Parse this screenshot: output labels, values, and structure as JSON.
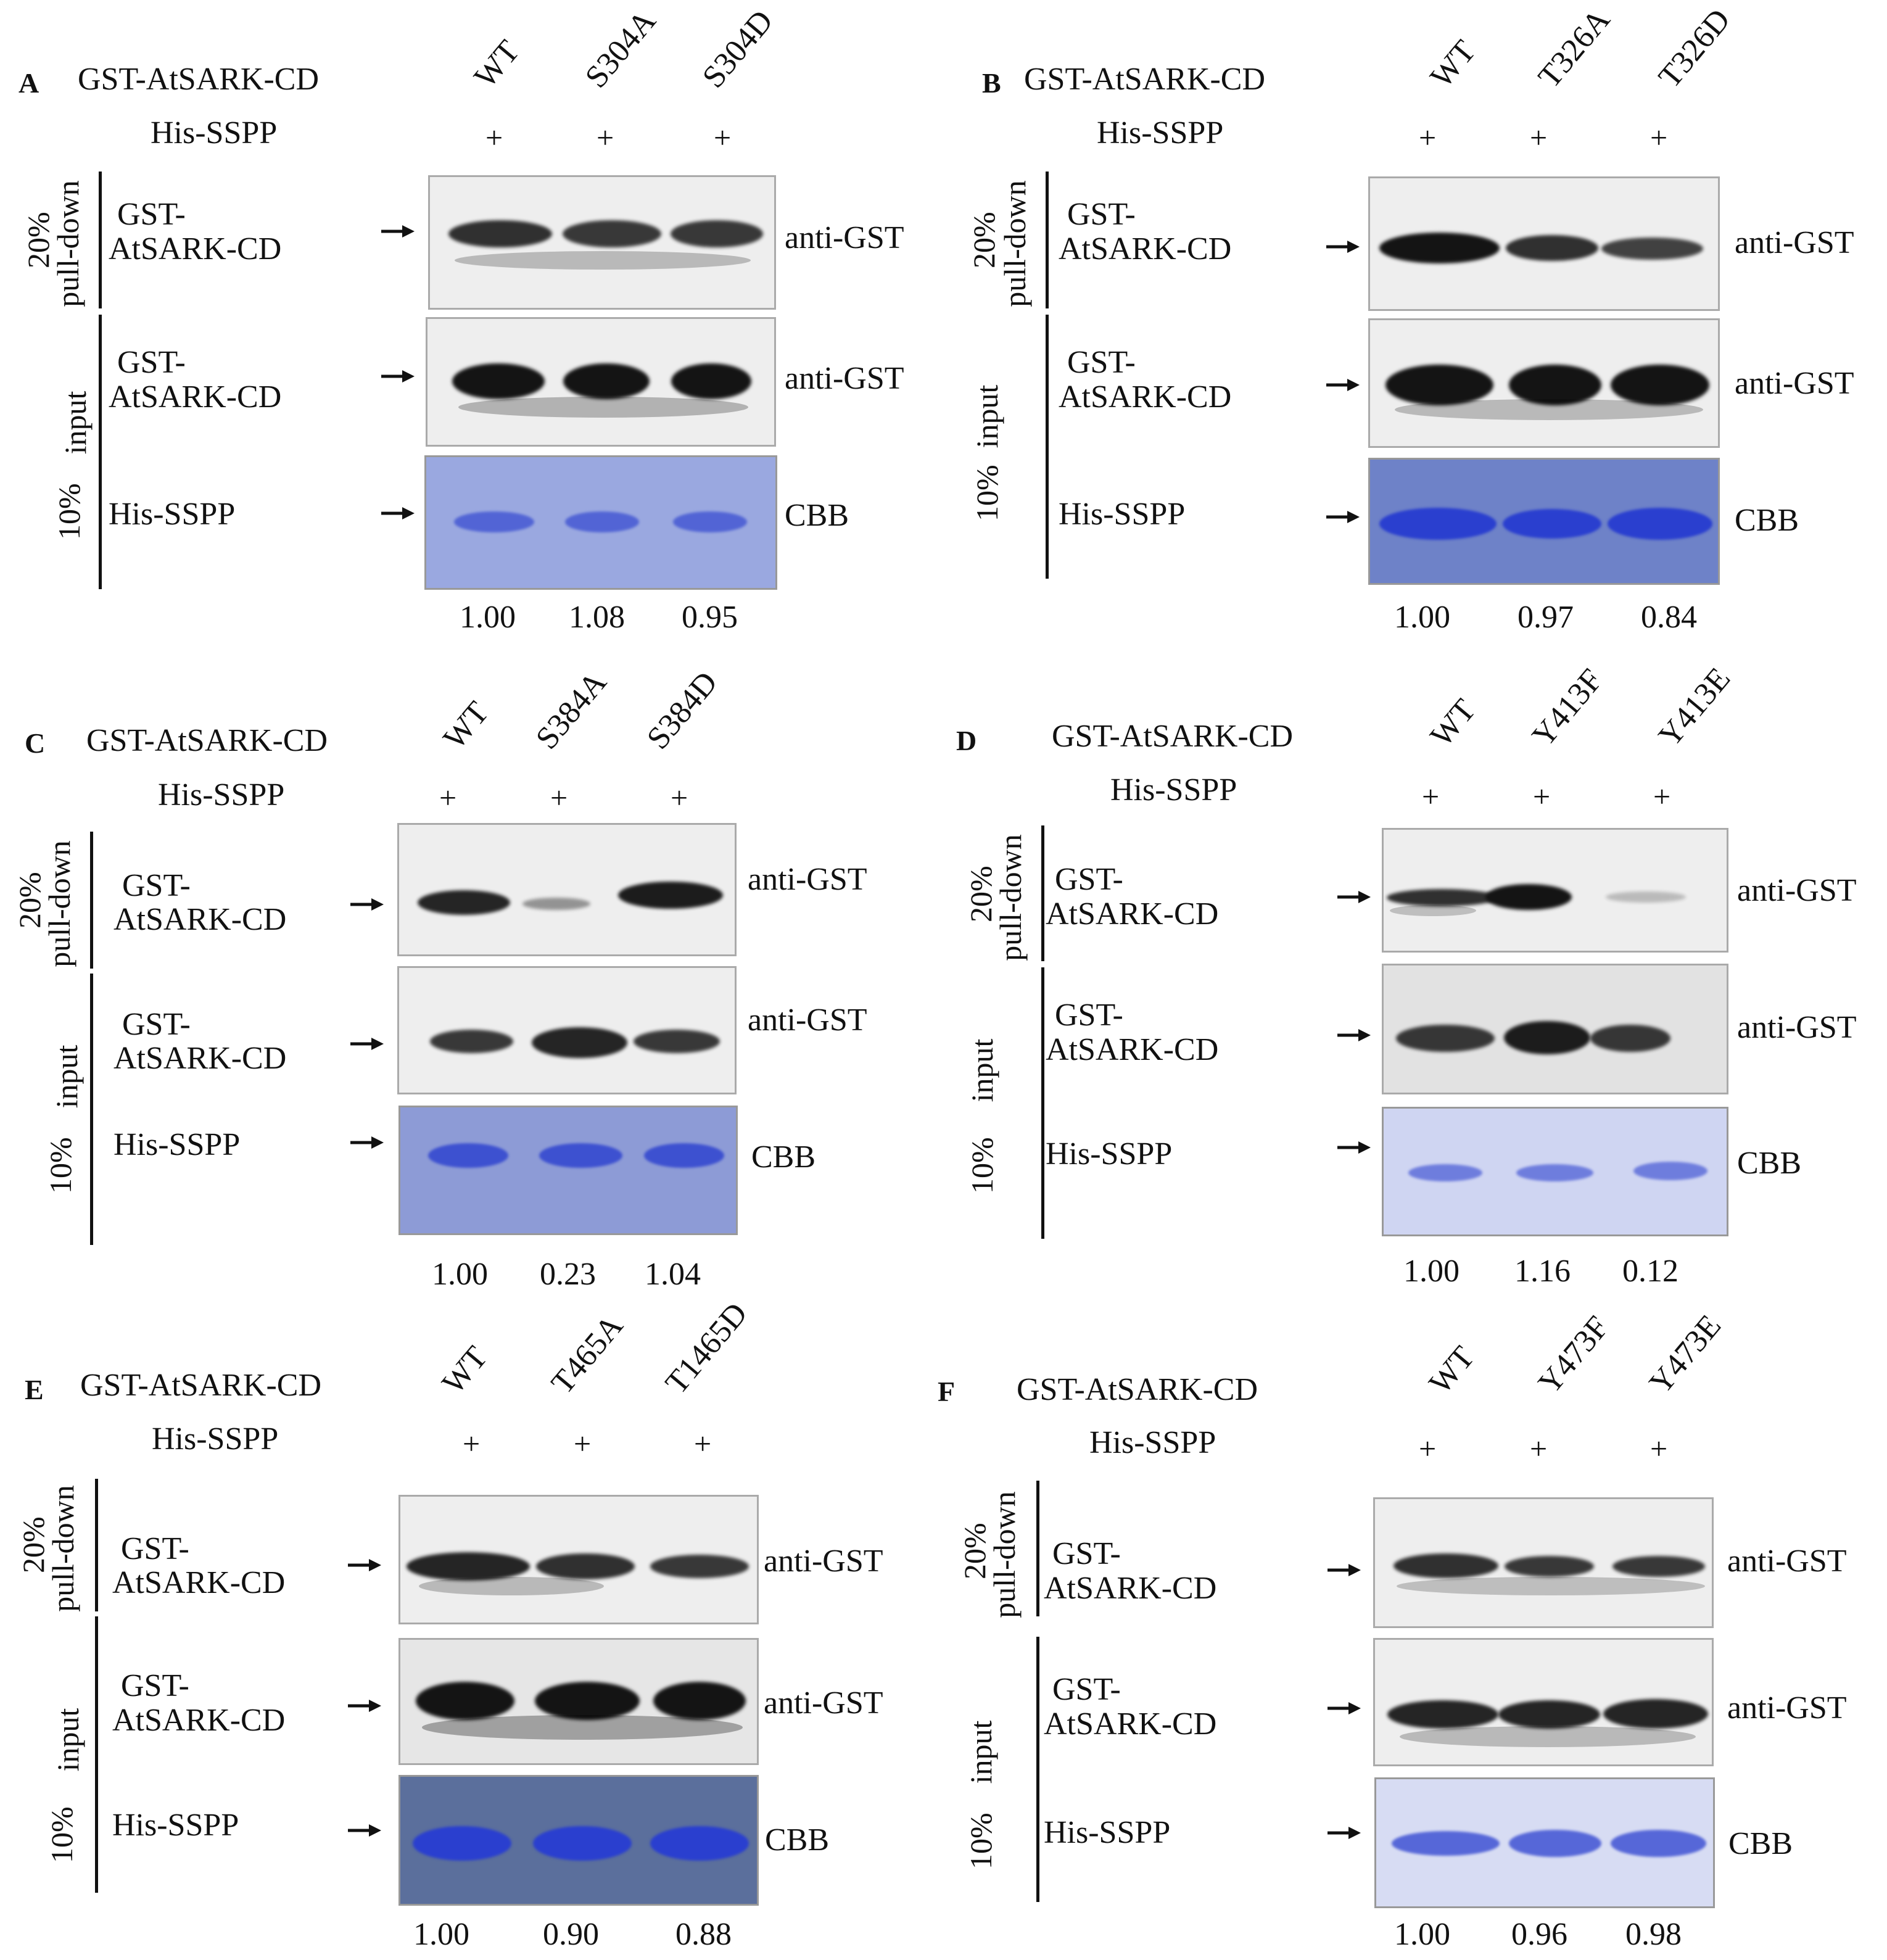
{
  "common": {
    "construct_label": "GST-AtSARK-CD",
    "prey_label": "His-SSPP",
    "plus": "+",
    "pulldown_line1": "20%",
    "pulldown_line2": "pull-down",
    "input_line1": "10%",
    "input_line2": "input",
    "blot_label_line1": "GST-",
    "blot_label_line2": "AtSARK-CD",
    "sspp_label": "His-SSPP",
    "antibody": "anti-GST",
    "stain": "CBB"
  },
  "colors": {
    "blot_bg": "#eeeeee",
    "band_dark": "#141414",
    "cbb_bg": "#8d9bd6",
    "cbb_band": "#2a3fcf"
  },
  "panels": [
    {
      "letter": "A",
      "lanes": [
        "WT",
        "S304A",
        "S304D"
      ],
      "quant": [
        "1.00",
        "1.08",
        "0.95"
      ],
      "pulldown_intensity": [
        0.85,
        0.8,
        0.8
      ],
      "input_intensity": [
        1.0,
        1.0,
        1.0
      ],
      "cbb_intensity": [
        0.45,
        0.45,
        0.45
      ]
    },
    {
      "letter": "B",
      "lanes": [
        "WT",
        "T326A",
        "T326D"
      ],
      "quant": [
        "1.00",
        "0.97",
        "0.84"
      ],
      "pulldown_intensity": [
        1.0,
        0.85,
        0.75
      ],
      "input_intensity": [
        1.0,
        1.0,
        1.0
      ],
      "cbb_intensity": [
        1.0,
        1.0,
        1.0
      ]
    },
    {
      "letter": "C",
      "lanes": [
        "WT",
        "S384A",
        "S384D"
      ],
      "quant": [
        "1.00",
        "0.23",
        "1.04"
      ],
      "pulldown_intensity": [
        0.9,
        0.3,
        0.95
      ],
      "input_intensity": [
        0.8,
        0.9,
        0.8
      ],
      "cbb_intensity": [
        0.7,
        0.7,
        0.7
      ]
    },
    {
      "letter": "D",
      "lanes": [
        "WT",
        "Y413F",
        "Y413E"
      ],
      "quant": [
        "1.00",
        "1.16",
        "0.12"
      ],
      "pulldown_intensity": [
        0.85,
        1.0,
        0.1
      ],
      "input_intensity": [
        0.8,
        0.95,
        0.8
      ],
      "cbb_intensity": [
        0.35,
        0.35,
        0.35
      ]
    },
    {
      "letter": "E",
      "lanes": [
        "WT",
        "T465A",
        "T1465D"
      ],
      "quant": [
        "1.00",
        "0.90",
        "0.88"
      ],
      "pulldown_intensity": [
        0.9,
        0.85,
        0.8
      ],
      "input_intensity": [
        1.0,
        1.0,
        1.0
      ],
      "cbb_intensity": [
        1.0,
        1.0,
        1.0
      ]
    },
    {
      "letter": "F",
      "lanes": [
        "WT",
        "Y473F",
        "Y473E"
      ],
      "quant": [
        "1.00",
        "0.96",
        "0.98"
      ],
      "pulldown_intensity": [
        0.85,
        0.8,
        0.8
      ],
      "input_intensity": [
        0.9,
        0.9,
        0.9
      ],
      "cbb_intensity": [
        0.6,
        0.6,
        0.6
      ]
    }
  ]
}
